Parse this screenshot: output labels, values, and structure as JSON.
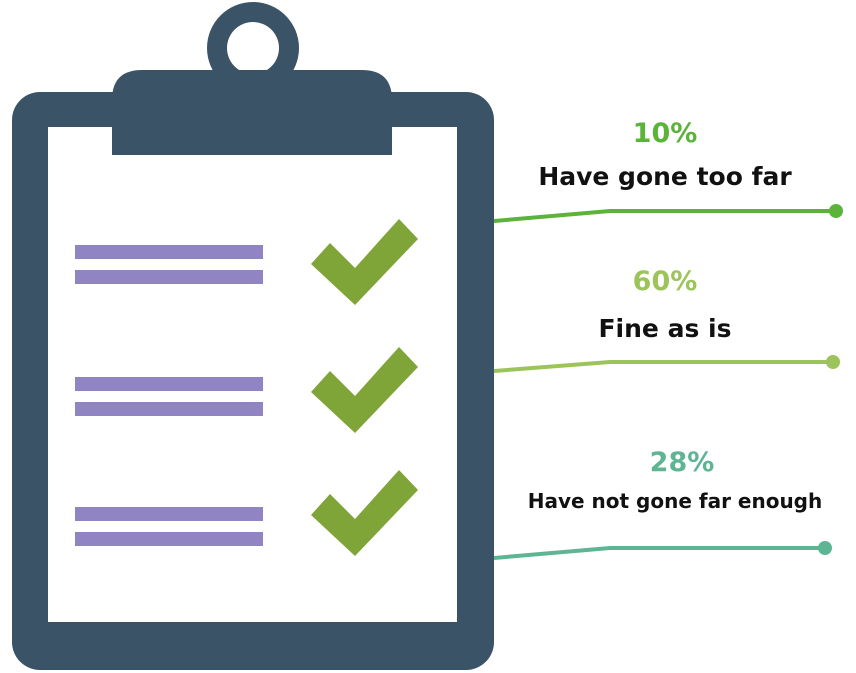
{
  "chart_data": {
    "type": "bar",
    "categories": [
      "Have gone too far",
      "Fine as is",
      "Have not gone far enough"
    ],
    "values": [
      10,
      60,
      28
    ],
    "value_labels": [
      "10%",
      "60%",
      "28%"
    ],
    "unit": "%",
    "colors": [
      "#5bb33a",
      "#9cc45a",
      "#5db594"
    ]
  },
  "icons": {
    "clipboard": "clipboard-icon",
    "check": "checkmark-icon"
  },
  "palette": {
    "clipboard": "#3b5367",
    "paper": "#ffffff",
    "lines": "#9184c2",
    "check": "#7fa437"
  }
}
